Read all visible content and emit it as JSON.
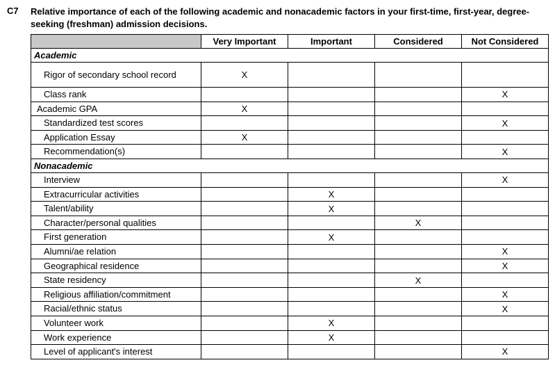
{
  "code": "C7",
  "title": "Relative importance of each of the following academic and nonacademic factors in your first-time, first-year, degree-seeking (freshman) admission decisions.",
  "columns": [
    "Very Important",
    "Important",
    "Considered",
    "Not Considered"
  ],
  "mark": "X",
  "sections": [
    {
      "name": "Academic",
      "rows": [
        {
          "label": "Rigor of secondary school record",
          "twoline": true,
          "marks": [
            true,
            false,
            false,
            false
          ]
        },
        {
          "label": "Class rank",
          "marks": [
            false,
            false,
            false,
            true
          ]
        },
        {
          "label": "Academic GPA",
          "tight": true,
          "marks": [
            true,
            false,
            false,
            false
          ]
        },
        {
          "label": "Standardized test scores",
          "marks": [
            false,
            false,
            false,
            true
          ]
        },
        {
          "label": "Application Essay",
          "marks": [
            true,
            false,
            false,
            false
          ]
        },
        {
          "label": "Recommendation(s)",
          "marks": [
            false,
            false,
            false,
            true
          ]
        }
      ]
    },
    {
      "name": "Nonacademic",
      "rows": [
        {
          "label": "Interview",
          "marks": [
            false,
            false,
            false,
            true
          ]
        },
        {
          "label": "Extracurricular activities",
          "marks": [
            false,
            true,
            false,
            false
          ]
        },
        {
          "label": "Talent/ability",
          "marks": [
            false,
            true,
            false,
            false
          ]
        },
        {
          "label": "Character/personal qualities",
          "marks": [
            false,
            false,
            true,
            false
          ]
        },
        {
          "label": "First generation",
          "marks": [
            false,
            true,
            false,
            false
          ]
        },
        {
          "label": "Alumni/ae relation",
          "marks": [
            false,
            false,
            false,
            true
          ]
        },
        {
          "label": "Geographical residence",
          "marks": [
            false,
            false,
            false,
            true
          ]
        },
        {
          "label": "State residency",
          "marks": [
            false,
            false,
            true,
            false
          ]
        },
        {
          "label": "Religious affiliation/commitment",
          "marks": [
            false,
            false,
            false,
            true
          ]
        },
        {
          "label": "Racial/ethnic status",
          "marks": [
            false,
            false,
            false,
            true
          ]
        },
        {
          "label": "Volunteer work",
          "marks": [
            false,
            true,
            false,
            false
          ]
        },
        {
          "label": "Work experience",
          "marks": [
            false,
            true,
            false,
            false
          ]
        },
        {
          "label": "Level of applicant's interest",
          "marks": [
            false,
            false,
            false,
            true
          ]
        }
      ]
    }
  ]
}
